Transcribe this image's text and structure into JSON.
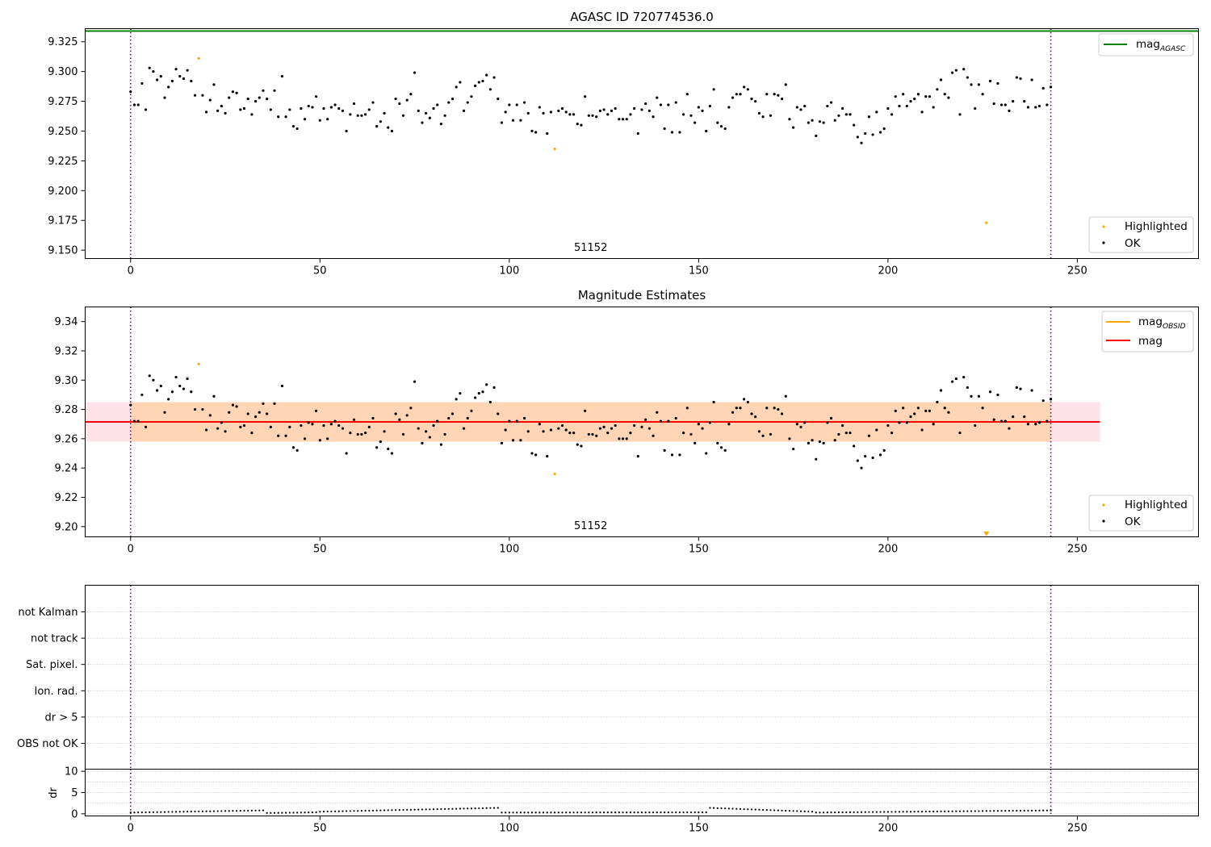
{
  "figure": {
    "title": "AGASC ID 720774536.0"
  },
  "chart_data": [
    {
      "id": "agasc",
      "type": "scatter",
      "title": "AGASC ID 720774536.0",
      "xlim": [
        -12,
        282
      ],
      "ylim": [
        9.143,
        9.336
      ],
      "xticks": [
        0,
        50,
        100,
        150,
        200,
        250
      ],
      "yticks": [
        9.15,
        9.175,
        9.2,
        9.225,
        9.25,
        9.275,
        9.3,
        9.325
      ],
      "ytick_labels": [
        "9.150",
        "9.175",
        "9.200",
        "9.225",
        "9.250",
        "9.275",
        "9.300",
        "9.325"
      ],
      "vlines": [
        0,
        243
      ],
      "hline": {
        "name": "mag",
        "sub": "AGASC",
        "value": 9.334,
        "color": "#008000"
      },
      "obsid_label": {
        "text": "51152",
        "x": 121.5
      },
      "legend_upper": [
        {
          "name": "mag",
          "sub": "AGASC",
          "color": "#008000"
        }
      ],
      "legend_lower": [
        {
          "name": "Highlighted",
          "color": "#ffa500"
        },
        {
          "name": "OK",
          "color": "#000000"
        }
      ],
      "highlighted": {
        "x": [
          18,
          112,
          226
        ],
        "y": [
          9.311,
          9.235,
          9.173
        ]
      },
      "ok_y": [
        9.283,
        9.272,
        9.272,
        9.29,
        9.268,
        9.303,
        9.3,
        9.293,
        9.296,
        9.278,
        9.287,
        9.292,
        9.302,
        9.296,
        9.294,
        9.301,
        9.292,
        9.28,
        0,
        9.28,
        9.266,
        9.276,
        9.289,
        9.267,
        9.271,
        9.265,
        9.278,
        9.283,
        9.282,
        9.268,
        9.269,
        9.277,
        9.264,
        9.275,
        9.278,
        9.284,
        9.277,
        9.268,
        9.284,
        9.262,
        9.296,
        9.262,
        9.268,
        9.254,
        9.252,
        9.269,
        9.26,
        9.271,
        9.27,
        9.279,
        9.259,
        9.269,
        9.26,
        9.27,
        9.272,
        9.269,
        9.267,
        9.25,
        9.264,
        9.273,
        9.263,
        9.263,
        9.264,
        9.268,
        9.274,
        9.254,
        9.258,
        9.265,
        9.253,
        9.25,
        9.277,
        9.273,
        9.263,
        9.276,
        9.281,
        9.299,
        9.267,
        9.257,
        9.265,
        9.261,
        9.269,
        9.272,
        9.256,
        9.263,
        9.274,
        9.277,
        9.287,
        9.291,
        9.267,
        9.274,
        9.279,
        9.288,
        9.291,
        9.292,
        9.297,
        9.285,
        9.295,
        9.277,
        9.257,
        9.266,
        9.272,
        9.259,
        9.272,
        9.259,
        9.274,
        9.265,
        9.25,
        9.249,
        9.27,
        9.265,
        9.248,
        9.266,
        0,
        9.267,
        9.269,
        9.266,
        9.264,
        9.264,
        9.256,
        9.255,
        9.279,
        9.263,
        9.263,
        9.262,
        9.267,
        9.268,
        9.264,
        9.267,
        9.269,
        9.26,
        9.26,
        9.26,
        9.264,
        9.269,
        9.248,
        9.268,
        9.273,
        9.267,
        9.262,
        9.278,
        9.272,
        9.252,
        9.272,
        9.249,
        9.274,
        9.249,
        9.264,
        9.281,
        9.263,
        9.257,
        9.27,
        9.267,
        9.25,
        9.271,
        9.285,
        9.257,
        9.254,
        9.252,
        9.27,
        9.278,
        9.281,
        9.281,
        9.287,
        9.285,
        9.277,
        9.275,
        9.265,
        9.262,
        9.281,
        9.263,
        9.281,
        9.28,
        9.277,
        9.289,
        9.26,
        9.253,
        9.27,
        9.268,
        9.271,
        9.257,
        9.259,
        9.246,
        9.258,
        9.257,
        9.271,
        9.274,
        9.259,
        9.263,
        9.269,
        9.264,
        9.264,
        9.255,
        9.245,
        9.24,
        9.248,
        9.262,
        9.247,
        9.266,
        9.249,
        9.252,
        9.269,
        9.264,
        9.279,
        9.271,
        9.281,
        9.271,
        9.275,
        9.277,
        9.281,
        9.266,
        9.279,
        9.279,
        9.27,
        9.285,
        9.293,
        9.281,
        9.278,
        9.299,
        9.301,
        9.264,
        9.302,
        9.295,
        9.289,
        9.269,
        9.289,
        9.281,
        0,
        9.292,
        9.273,
        9.29,
        9.272,
        9.272,
        9.267,
        9.275,
        9.295,
        9.294,
        9.275,
        9.27,
        9.293,
        9.27,
        9.271,
        9.286,
        9.272,
        9.287
      ]
    },
    {
      "id": "estimates",
      "type": "scatter",
      "title": "Magnitude Estimates",
      "xlim": [
        -12,
        282
      ],
      "ylim": [
        9.193,
        9.35
      ],
      "xticks": [
        0,
        50,
        100,
        150,
        200,
        250
      ],
      "yticks": [
        9.2,
        9.22,
        9.24,
        9.26,
        9.28,
        9.3,
        9.32,
        9.34
      ],
      "ytick_labels": [
        "9.20",
        "9.22",
        "9.24",
        "9.26",
        "9.28",
        "9.30",
        "9.32",
        "9.34"
      ],
      "vlines": [
        0,
        243
      ],
      "mag": {
        "name": "mag",
        "value": 9.2715,
        "color": "#ff0000",
        "band_pink": [
          9.258,
          9.285
        ],
        "band_orange": [
          9.258,
          9.285
        ],
        "x_range": [
          -12,
          256
        ]
      },
      "mag_obsid": {
        "name": "mag",
        "sub": "OBSID",
        "value": 9.2715,
        "color": "#ffa500",
        "x_range": [
          0,
          243
        ]
      },
      "obsid_label": {
        "text": "51152",
        "x": 121.5
      },
      "legend_upper": [
        {
          "name": "mag",
          "sub": "OBSID",
          "color": "#ffa500"
        },
        {
          "name": "mag",
          "sub": "",
          "color": "#ff0000"
        }
      ],
      "legend_lower": [
        {
          "name": "Highlighted",
          "color": "#ffa500"
        },
        {
          "name": "OK",
          "color": "#000000"
        }
      ],
      "highlighted": {
        "x": [
          18,
          112
        ],
        "y": [
          9.311,
          9.236
        ]
      },
      "offscale_marker": {
        "x": 226,
        "y": 9.195,
        "color": "#ffa500"
      }
    },
    {
      "id": "flags",
      "type": "scatter",
      "xlim": [
        -12,
        282
      ],
      "categories": [
        "not Kalman",
        "not track",
        "Sat. pixel.",
        "Ion. rad.",
        "dr > 5",
        "OBS not OK"
      ],
      "vlines": [
        0,
        243
      ]
    },
    {
      "id": "dr",
      "type": "scatter",
      "ylabel": "dr",
      "xlim": [
        -12,
        282
      ],
      "ylim": [
        -0.5,
        10.5
      ],
      "xticks": [
        0,
        50,
        100,
        150,
        200,
        250
      ],
      "yticks": [
        0,
        5,
        10
      ],
      "ytick_labels": [
        "0",
        "5",
        "10"
      ],
      "vlines": [
        0,
        243
      ],
      "dr_segments": [
        {
          "from": 0,
          "to": 35,
          "start": 0.3,
          "end": 0.8
        },
        {
          "from": 36,
          "to": 49,
          "start": 0.2,
          "end": 0.35
        },
        {
          "from": 50,
          "to": 97,
          "start": 0.5,
          "end": 1.4
        },
        {
          "from": 98,
          "to": 152,
          "start": 0.3,
          "end": 0.35
        },
        {
          "from": 153,
          "to": 180,
          "start": 1.4,
          "end": 0.5
        },
        {
          "from": 181,
          "to": 243,
          "start": 0.3,
          "end": 0.8
        }
      ]
    }
  ]
}
